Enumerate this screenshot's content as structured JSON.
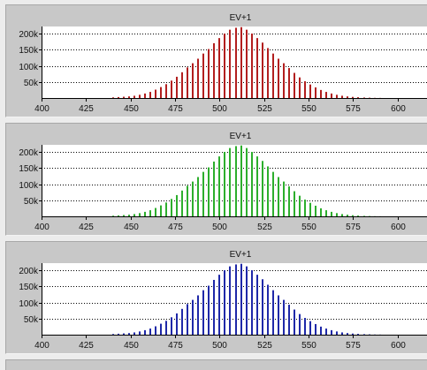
{
  "chart_data": [
    {
      "type": "bar",
      "title": "EV+1",
      "color": "#b21e1e",
      "xlim": [
        400,
        617
      ],
      "ylim": [
        0,
        222000
      ],
      "x_ticks": [
        400,
        425,
        450,
        475,
        500,
        525,
        550,
        575,
        600
      ],
      "y_ticks": [
        50000,
        100000,
        150000,
        200000
      ],
      "y_tick_labels": [
        "50k",
        "100k",
        "150k",
        "200k"
      ],
      "grid": "horizontal-dotted",
      "x": [
        440,
        443,
        446,
        449,
        452,
        455,
        458,
        461,
        464,
        467,
        470,
        473,
        476,
        479,
        482,
        485,
        488,
        491,
        494,
        497,
        500,
        503,
        506,
        509,
        512,
        515,
        518,
        521,
        524,
        527,
        530,
        533,
        536,
        539,
        542,
        545,
        548,
        551,
        554,
        557,
        560,
        563,
        566,
        569,
        572,
        575,
        578,
        581,
        584,
        587,
        590
      ],
      "values": [
        2000,
        3000,
        4000,
        5000,
        7000,
        10000,
        14000,
        19000,
        26000,
        34000,
        43000,
        54000,
        66000,
        80000,
        95000,
        108000,
        122000,
        138000,
        152000,
        170000,
        186000,
        200000,
        212000,
        218000,
        220000,
        212000,
        200000,
        186000,
        172000,
        155000,
        138000,
        122000,
        108000,
        93000,
        78000,
        64000,
        52000,
        42000,
        33000,
        25000,
        19000,
        14000,
        10000,
        7000,
        5000,
        3500,
        2500,
        1500,
        1000,
        500,
        300
      ]
    },
    {
      "type": "bar",
      "title": "EV+1",
      "color": "#2cae2c",
      "xlim": [
        400,
        617
      ],
      "ylim": [
        0,
        222000
      ],
      "x_ticks": [
        400,
        425,
        450,
        475,
        500,
        525,
        550,
        575,
        600
      ],
      "y_ticks": [
        50000,
        100000,
        150000,
        200000
      ],
      "y_tick_labels": [
        "50k",
        "100k",
        "150k",
        "200k"
      ],
      "grid": "horizontal-dotted",
      "x": [
        440,
        443,
        446,
        449,
        452,
        455,
        458,
        461,
        464,
        467,
        470,
        473,
        476,
        479,
        482,
        485,
        488,
        491,
        494,
        497,
        500,
        503,
        506,
        509,
        512,
        515,
        518,
        521,
        524,
        527,
        530,
        533,
        536,
        539,
        542,
        545,
        548,
        551,
        554,
        557,
        560,
        563,
        566,
        569,
        572,
        575,
        578,
        581,
        584,
        587,
        590
      ],
      "values": [
        2000,
        3000,
        4000,
        5000,
        7000,
        10000,
        14000,
        19000,
        26000,
        34000,
        43000,
        54000,
        66000,
        80000,
        95000,
        108000,
        122000,
        138000,
        152000,
        170000,
        186000,
        200000,
        212000,
        218000,
        220000,
        212000,
        200000,
        186000,
        172000,
        155000,
        138000,
        122000,
        108000,
        93000,
        78000,
        64000,
        52000,
        42000,
        33000,
        25000,
        19000,
        14000,
        10000,
        7000,
        5000,
        3500,
        2500,
        1500,
        1000,
        500,
        300
      ]
    },
    {
      "type": "bar",
      "title": "EV+1",
      "color": "#1e28a8",
      "xlim": [
        400,
        617
      ],
      "ylim": [
        0,
        222000
      ],
      "x_ticks": [
        400,
        425,
        450,
        475,
        500,
        525,
        550,
        575,
        600
      ],
      "y_ticks": [
        50000,
        100000,
        150000,
        200000
      ],
      "y_tick_labels": [
        "50k",
        "100k",
        "150k",
        "200k"
      ],
      "grid": "horizontal-dotted",
      "x": [
        440,
        443,
        446,
        449,
        452,
        455,
        458,
        461,
        464,
        467,
        470,
        473,
        476,
        479,
        482,
        485,
        488,
        491,
        494,
        497,
        500,
        503,
        506,
        509,
        512,
        515,
        518,
        521,
        524,
        527,
        530,
        533,
        536,
        539,
        542,
        545,
        548,
        551,
        554,
        557,
        560,
        563,
        566,
        569,
        572,
        575,
        578,
        581,
        584,
        587,
        590
      ],
      "values": [
        2000,
        3000,
        4000,
        5000,
        7000,
        10000,
        14000,
        19000,
        26000,
        34000,
        43000,
        54000,
        66000,
        80000,
        95000,
        108000,
        122000,
        138000,
        152000,
        170000,
        186000,
        200000,
        212000,
        218000,
        220000,
        212000,
        200000,
        186000,
        172000,
        155000,
        138000,
        122000,
        108000,
        93000,
        78000,
        64000,
        52000,
        42000,
        33000,
        25000,
        19000,
        14000,
        10000,
        7000,
        5000,
        3500,
        2500,
        1500,
        1000,
        500,
        300
      ]
    }
  ]
}
